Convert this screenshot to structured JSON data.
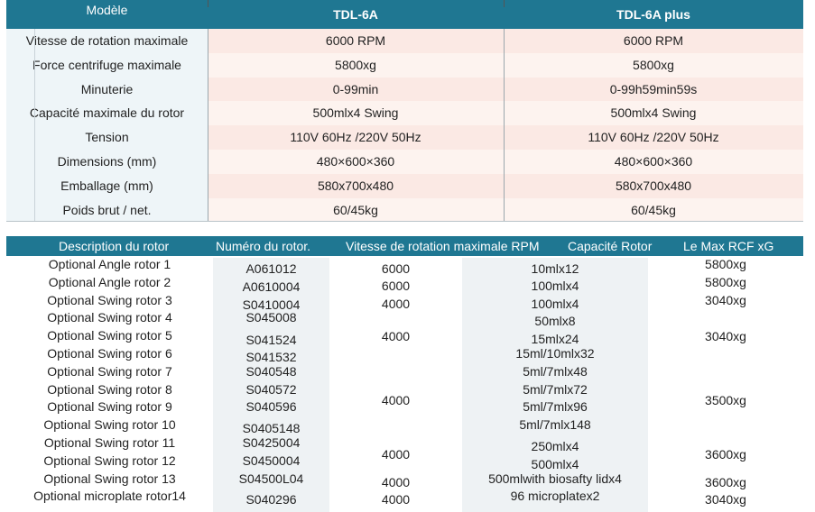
{
  "spec_table": {
    "header": {
      "label": "Modèle",
      "model1": "TDL-6A",
      "model2": "TDL-6A plus"
    },
    "rows": [
      {
        "label": "Vitesse de rotation maximale",
        "v1": "6000 RPM",
        "v2": "6000 RPM"
      },
      {
        "label": "Force centrifuge maximale",
        "v1": "5800xg",
        "v2": "5800xg"
      },
      {
        "label": "Minuterie",
        "v1": "0-99min",
        "v2": "0-99h59min59s"
      },
      {
        "label": "Capacité maximale du rotor",
        "v1": "500mlx4 Swing",
        "v2": "500mlx4 Swing"
      },
      {
        "label": "Tension",
        "v1": "110V 60Hz /220V 50Hz",
        "v2": "110V 60Hz /220V 50Hz"
      },
      {
        "label": "Dimensions (mm)",
        "v1": "480×600×360",
        "v2": "480×600×360"
      },
      {
        "label": "Emballage (mm)",
        "v1": "580x700x480",
        "v2": "580x700x480"
      },
      {
        "label": "Poids brut / net.",
        "v1": "60/45kg",
        "v2": "60/45kg"
      }
    ],
    "colors": {
      "header_bg": "#1f7792",
      "label_bg": "#eef5f8",
      "value_bg": "#fbe9e4"
    }
  },
  "rotor_table": {
    "headers": {
      "description": "Description du rotor",
      "number": "Numéro du rotor.",
      "speed": "Vitesse de rotation maximale RPM",
      "capacity": "Capacité Rotor",
      "rcf": "Le Max RCF xG"
    },
    "rows": [
      {
        "desc": "Optional Angle rotor 1",
        "num": "A061012",
        "speed": "6000",
        "cap": "10mlx12",
        "rcf": "5800xg"
      },
      {
        "desc": "Optional Angle rotor 2",
        "num": "A0610004",
        "speed": "6000",
        "cap": "100mlx4",
        "rcf": "5800xg"
      },
      {
        "desc": "Optional Swing rotor 3",
        "num": "S0410004",
        "speed": "4000",
        "cap": "100mlx4",
        "rcf": "3040xg"
      },
      {
        "desc": "Optional Swing rotor 4",
        "num": "S045008",
        "speed": "",
        "cap": "50mlx8",
        "rcf": ""
      },
      {
        "desc": "Optional Swing rotor 5",
        "num": "S041524",
        "speed": "4000",
        "cap": "15mlx24",
        "rcf": "3040xg"
      },
      {
        "desc": "Optional Swing rotor 6",
        "num": "S041532",
        "speed": "",
        "cap": "15ml/10mlx32",
        "rcf": ""
      },
      {
        "desc": "Optional Swing rotor 7",
        "num": "S040548",
        "speed": "",
        "cap": "5ml/7mlx48",
        "rcf": ""
      },
      {
        "desc": "Optional Swing rotor 8",
        "num": "S040572",
        "speed": "",
        "cap": "5ml/7mlx72",
        "rcf": ""
      },
      {
        "desc": "Optional Swing rotor 9",
        "num": "S040596",
        "speed": "4000",
        "cap": "5ml/7mlx96",
        "rcf": "3500xg"
      },
      {
        "desc": "Optional Swing rotor 10",
        "num": "S0405148",
        "speed": "",
        "cap": "5ml/7mlx148",
        "rcf": ""
      },
      {
        "desc": "Optional Swing rotor 11",
        "num": "S0425004",
        "speed": "",
        "cap": "250mlx4",
        "rcf": ""
      },
      {
        "desc": "Optional Swing rotor 12",
        "num": "S0450004",
        "speed": "4000",
        "cap": "500mlx4",
        "rcf": "3600xg"
      },
      {
        "desc": "Optional Swing rotor 13",
        "num": "S04500L04",
        "speed": "4000",
        "cap": "500mlwith biosafty lidx4",
        "rcf": "3600xg"
      },
      {
        "desc": "Optional microplate rotor14",
        "num": "S040296",
        "speed": "4000",
        "cap": "96 microplatex2",
        "rcf": "3040xg"
      }
    ]
  }
}
